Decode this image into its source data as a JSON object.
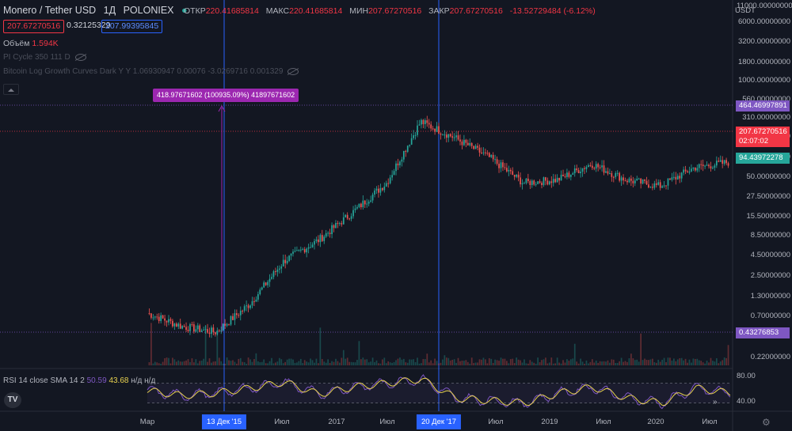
{
  "header": {
    "pair": "Monero / Tether USD",
    "interval": "1Д",
    "exchange": "POLONIEX",
    "ohlc": [
      {
        "label": "ОТКР",
        "value": "220.41685814"
      },
      {
        "label": "МАКС",
        "value": "220.41685814"
      },
      {
        "label": "МИН",
        "value": "207.67270516"
      },
      {
        "label": "ЗАКР",
        "value": "207.67270516"
      }
    ],
    "change": "-13.52729484 (-6.12%)",
    "sell_price": "207.67270516",
    "spread": "0.32125329",
    "buy_price": "207.99395845"
  },
  "indicators": {
    "volume_label": "Объём",
    "volume_value": "1.594K",
    "pi_cycle": "PI Cycle 350 111 D",
    "log_growth": "Bitcoin Log Growth Curves Dark Y Y 1.06930947 0.00076 -3.0269716 0.001329"
  },
  "measure_label": "418.97671602 (100935.09%) 41897671602",
  "price_axis": {
    "unit": "USDT",
    "ticks": [
      "11000.00000000",
      "6000.00000000",
      "3200.00000000",
      "1800.00000000",
      "1000.00000000",
      "560.00000000",
      "310.00000000",
      "160.00000000",
      "94.00000000",
      "50.00000000",
      "27.50000000",
      "15.50000000",
      "8.50000000",
      "4.50000000",
      "2.50000000",
      "1.30000000",
      "0.70000000",
      "0.22000000"
    ],
    "labels": [
      {
        "text": "464.46997891",
        "color": "#7e57c2"
      },
      {
        "text": "207.67270516",
        "color": "#f23645"
      },
      {
        "text": "02:07:02",
        "color": "#f23645"
      },
      {
        "text": "94.43972278",
        "color": "#26a69a"
      },
      {
        "text": "0.43276853",
        "color": "#7e57c2"
      }
    ]
  },
  "time_axis": {
    "labels": [
      "Мар",
      "Июл",
      "2017",
      "Июл",
      "Июл",
      "2019",
      "Июл",
      "2020",
      "Июл"
    ],
    "highlighted": [
      "13 Дек '15",
      "20 Дек '17"
    ]
  },
  "rsi": {
    "label": "RSI 14 close SMA 14 2",
    "value1": "50.59",
    "value2": "43.68",
    "na": "н/д н/д",
    "ticks": [
      "80.00",
      "40.00"
    ]
  },
  "chart_data": {
    "type": "candlestick",
    "title": "Monero / Tether USD, 1Д, POLONIEX",
    "y_scale": "log",
    "ylim": [
      0.18,
      11000
    ],
    "x": [
      "2015-03",
      "2015-07",
      "2015-12",
      "2016-03",
      "2016-07",
      "2016-12",
      "2017-03",
      "2017-07",
      "2017-12",
      "2018-03",
      "2018-07",
      "2018-12",
      "2019-03",
      "2019-07",
      "2019-12",
      "2020-03",
      "2020-07",
      "2020-10"
    ],
    "close": [
      0.9,
      0.6,
      0.5,
      1.2,
      4.5,
      8.5,
      20,
      50,
      330,
      200,
      110,
      50,
      55,
      90,
      55,
      45,
      80,
      94
    ],
    "vertical_markers": [
      "13 Дек '15",
      "20 Дек '17"
    ],
    "rsi_series": [
      55,
      45,
      50,
      60,
      72,
      48,
      62,
      70,
      78,
      40,
      35,
      30,
      50,
      62,
      40,
      30,
      60,
      50
    ]
  },
  "colors": {
    "background": "#131722",
    "up": "#26a69a",
    "down": "#ef5350",
    "rsi_line": "#7e57c2",
    "rsi_sma": "#e8d24f",
    "marker": "#2962ff"
  }
}
